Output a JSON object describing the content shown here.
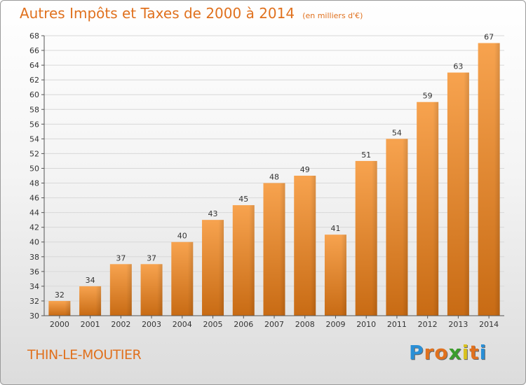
{
  "title": "Autres Impôts et Taxes de 2000 à 2014",
  "unit_note": "(en milliers d'€)",
  "commune": "THIN-LE-MOUTIER",
  "logo_letters": [
    "P",
    "r",
    "o",
    "x",
    "i",
    "t",
    "i"
  ],
  "colors": {
    "bar_light": "#f7a34f",
    "bar_dark": "#c86b14",
    "title": "#e0711e",
    "grid": "#d8d8d8",
    "axis": "#555555"
  },
  "chart_data": {
    "type": "bar",
    "categories": [
      "2000",
      "2001",
      "2002",
      "2003",
      "2004",
      "2005",
      "2006",
      "2007",
      "2008",
      "2009",
      "2010",
      "2011",
      "2012",
      "2013",
      "2014"
    ],
    "values": [
      32,
      34,
      37,
      37,
      40,
      43,
      45,
      48,
      49,
      41,
      51,
      54,
      59,
      63,
      67
    ],
    "ylim": [
      30,
      68
    ],
    "ytick_step": 2,
    "grid": true,
    "data_labels": true
  }
}
